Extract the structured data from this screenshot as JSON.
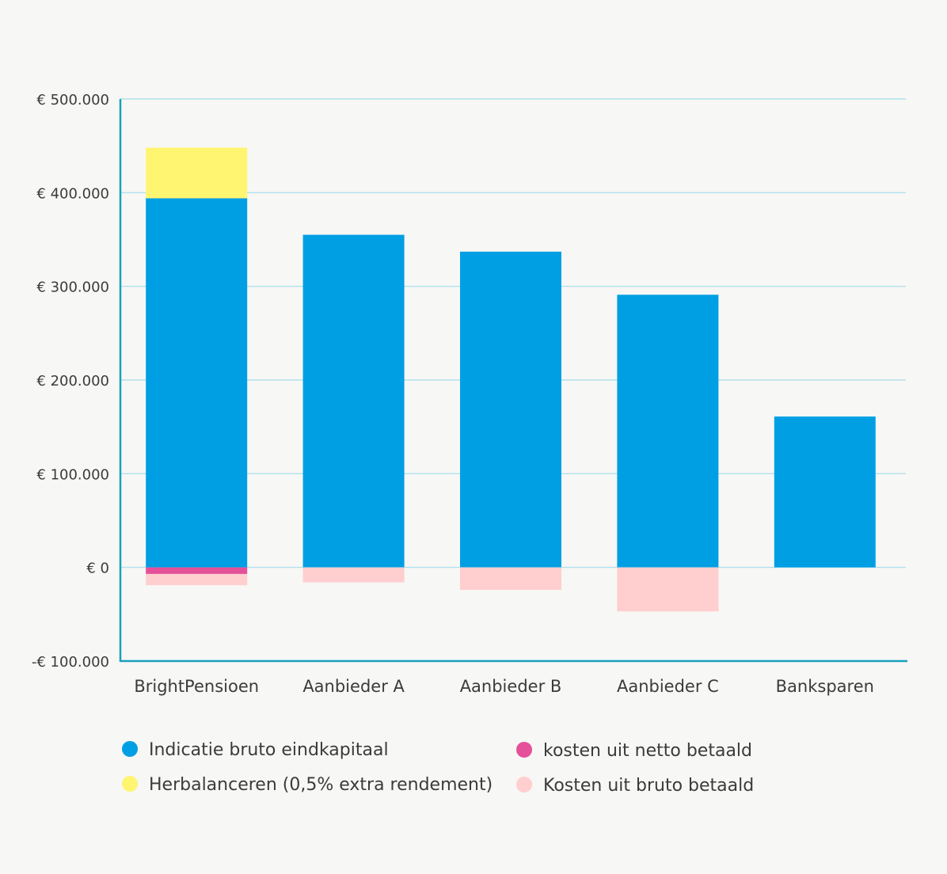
{
  "chart_data": {
    "type": "bar",
    "stacked": true,
    "title": "",
    "xlabel": "",
    "ylabel": "",
    "categories": [
      "BrightPensioen",
      "Aanbieder A",
      "Aanbieder B",
      "Aanbieder C",
      "Banksparen"
    ],
    "ylim": [
      -100000,
      500000
    ],
    "yticks": [
      -100000,
      0,
      100000,
      200000,
      300000,
      400000,
      500000
    ],
    "ytick_labels": [
      "-€ 100.000",
      "€ 0",
      "€ 100.000",
      "€ 200.000",
      "€ 300.000",
      "€ 400.000",
      "€ 500.000"
    ],
    "grid": true,
    "legend_position": "bottom",
    "series": [
      {
        "name": "Indicatie bruto eindkapitaal",
        "color": "#009fe3",
        "values": [
          394000,
          355000,
          337000,
          291000,
          161000
        ]
      },
      {
        "name": "Herbalanceren (0,5% extra rendement)",
        "color": "#fff570",
        "values": [
          54000,
          0,
          0,
          0,
          0
        ]
      },
      {
        "name": "kosten uit netto betaald",
        "color": "#e5509a",
        "values": [
          -7000,
          0,
          0,
          0,
          0
        ]
      },
      {
        "name": "Kosten uit bruto betaald",
        "color": "#ffcece",
        "values": [
          -12000,
          -16000,
          -24000,
          -47000,
          0
        ]
      }
    ],
    "colors": {
      "grid": "#a3dcea",
      "axis": "#1aa0bd",
      "text": "#3b3b3b",
      "background": "#f7f7f5"
    }
  }
}
